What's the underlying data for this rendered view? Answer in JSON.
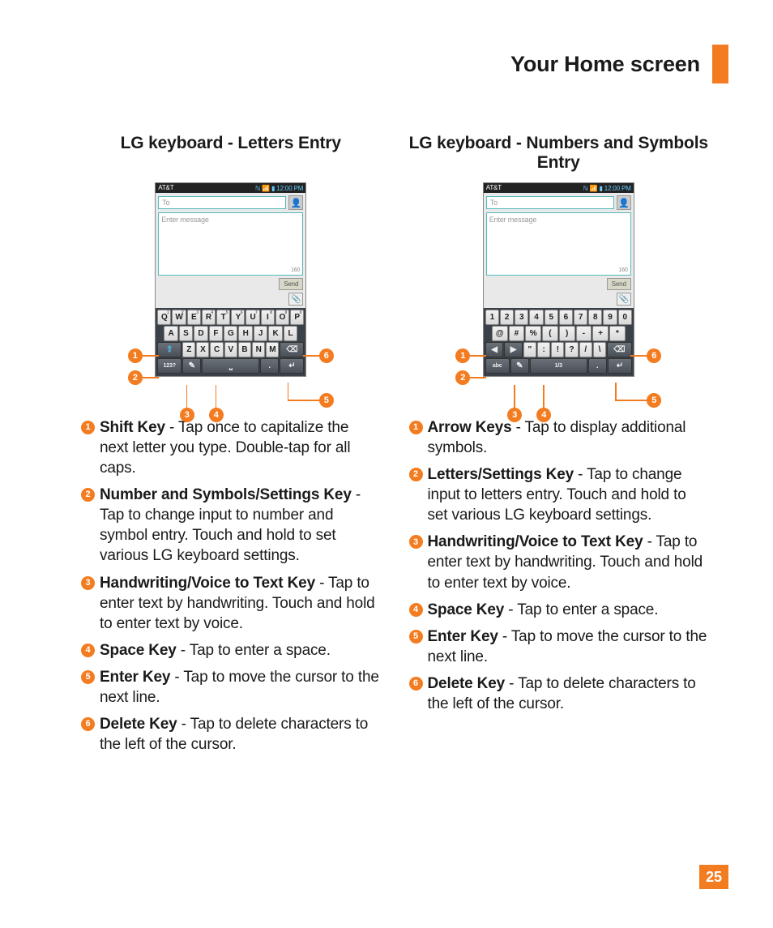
{
  "header": {
    "title": "Your Home screen"
  },
  "page_number": "25",
  "accent_color": "#f47c20",
  "left": {
    "heading": "LG keyboard  - Letters Entry",
    "phone": {
      "carrier": "AT&T",
      "time": "12:00 PM",
      "to_placeholder": "To",
      "msg_placeholder": "Enter message",
      "char_limit": "160",
      "send_label": "Send",
      "rows": {
        "r1": [
          "Q",
          "W",
          "E",
          "R",
          "T",
          "Y",
          "U",
          "I",
          "O",
          "P"
        ],
        "r2": [
          "A",
          "S",
          "D",
          "F",
          "G",
          "H",
          "J",
          "K",
          "L"
        ],
        "r3_mid": [
          "Z",
          "X",
          "C",
          "V",
          "B",
          "N",
          "M"
        ],
        "bottom": {
          "sym": "123?",
          "space": "",
          "dot": "."
        }
      }
    },
    "items": [
      {
        "title": "Shift Key",
        "desc": " - Tap once to capitalize the next letter you type. Double-tap for all caps."
      },
      {
        "title": "Number and Symbols/Settings Key",
        "desc": " - Tap to change input to number and symbol entry. Touch and hold to set various LG keyboard settings."
      },
      {
        "title": "Handwriting/Voice to Text Key",
        "desc": " - Tap to enter text by handwriting. Touch and hold to enter text by voice."
      },
      {
        "title": "Space Key",
        "desc": " - Tap to enter a space."
      },
      {
        "title": "Enter Key",
        "desc": " - Tap to move the cursor to the next line."
      },
      {
        "title": "Delete Key",
        "desc": " - Tap to delete characters to the left of the cursor."
      }
    ]
  },
  "right": {
    "heading": "LG keyboard - Numbers and Symbols Entry",
    "phone": {
      "carrier": "AT&T",
      "time": "12:00 PM",
      "to_placeholder": "To",
      "msg_placeholder": "Enter message",
      "char_limit": "160",
      "send_label": "Send",
      "rows": {
        "r1": [
          "1",
          "2",
          "3",
          "4",
          "5",
          "6",
          "7",
          "8",
          "9",
          "0"
        ],
        "r2": [
          "@",
          "#",
          "%",
          "(",
          ")",
          "-",
          "+",
          "*"
        ],
        "r3_mid": [
          "\"",
          ":",
          "!",
          "?",
          "/",
          "\\"
        ],
        "bottom": {
          "sym": "abc",
          "space": "1/3",
          "dot": "."
        }
      }
    },
    "items": [
      {
        "title": "Arrow Keys",
        "desc": " - Tap to display additional symbols."
      },
      {
        "title": "Letters/Settings Key",
        "desc": " - Tap to change input to letters entry. Touch and hold to set various LG keyboard settings."
      },
      {
        "title": "Handwriting/Voice to Text Key",
        "desc": " - Tap to enter text by handwriting. Touch and hold to enter text by voice."
      },
      {
        "title": "Space Key",
        "desc": " - Tap to enter a space."
      },
      {
        "title": "Enter Key",
        "desc": " - Tap to move the cursor to the next line."
      },
      {
        "title": "Delete Key",
        "desc": " - Tap to delete characters to the left of the cursor."
      }
    ]
  }
}
